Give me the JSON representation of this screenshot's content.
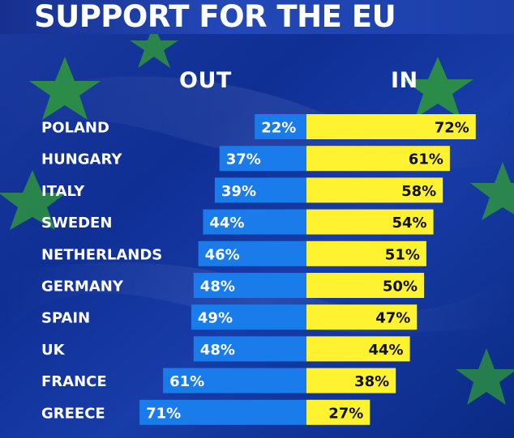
{
  "title": "SUPPORT FOR THE EU",
  "chart_data": {
    "type": "bar",
    "title": "SUPPORT FOR THE EU",
    "categories": [
      "POLAND",
      "HUNGARY",
      "ITALY",
      "SWEDEN",
      "NETHERLANDS",
      "GERMANY",
      "SPAIN",
      "UK",
      "FRANCE",
      "GREECE"
    ],
    "series": [
      {
        "name": "OUT",
        "values": [
          22,
          37,
          39,
          44,
          46,
          48,
          49,
          48,
          61,
          71
        ],
        "color": "#1a7bea"
      },
      {
        "name": "IN",
        "values": [
          72,
          61,
          58,
          54,
          51,
          50,
          47,
          44,
          38,
          27
        ],
        "color": "#fff230"
      }
    ],
    "value_suffix": "%",
    "layout": "diverging",
    "grid": false
  }
}
